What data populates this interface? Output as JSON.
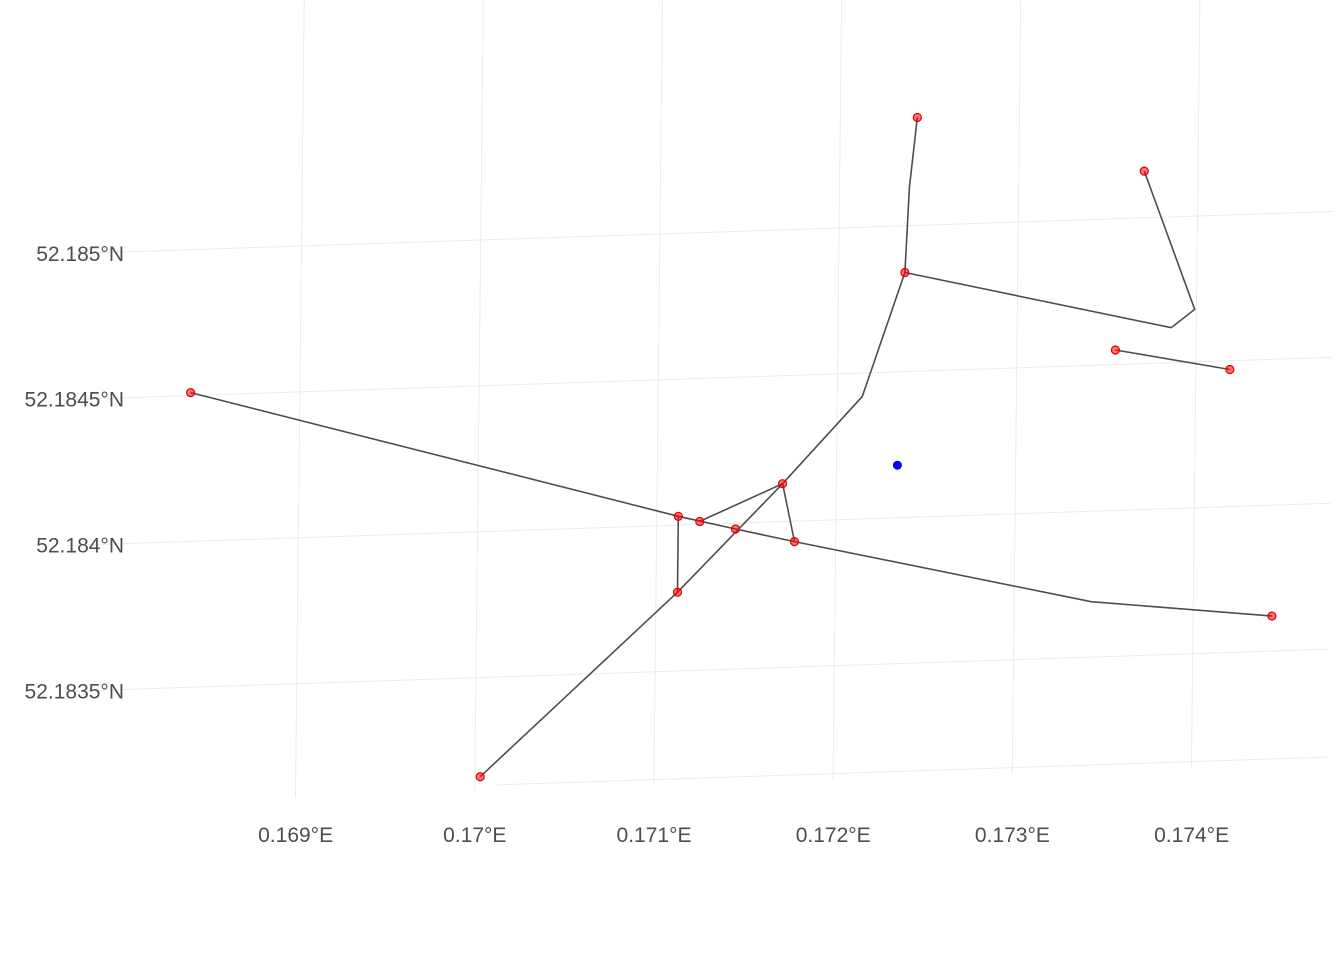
{
  "chart_data": {
    "type": "scatter",
    "title": "",
    "xlabel": "",
    "ylabel": "",
    "grid": true,
    "legend": "none",
    "xlim": [
      0.16835,
      0.17475
    ],
    "ylim": [
      52.18316,
      52.18595
    ],
    "x_ticks": [
      {
        "value": 0.169,
        "label": "0.169°E"
      },
      {
        "value": 0.17,
        "label": "0.17°E"
      },
      {
        "value": 0.171,
        "label": "0.171°E"
      },
      {
        "value": 0.172,
        "label": "0.172°E"
      },
      {
        "value": 0.173,
        "label": "0.173°E"
      },
      {
        "value": 0.174,
        "label": "0.174°E"
      }
    ],
    "y_ticks": [
      {
        "value": 52.1835,
        "label": "52.1835°N"
      },
      {
        "value": 52.184,
        "label": "52.184°N"
      },
      {
        "value": 52.1845,
        "label": "52.1845°N"
      },
      {
        "value": 52.185,
        "label": "52.185°N"
      }
    ],
    "node_color": "#ff0000",
    "edge_color": "#4d4d4d",
    "point_color": "#0000ff",
    "nodes": [
      {
        "x": 0.16839,
        "y": 52.18451
      },
      {
        "x": 0.17003,
        "y": 52.18316
      },
      {
        "x": 0.17112,
        "y": 52.18403
      },
      {
        "x": 0.17112,
        "y": 52.18377
      },
      {
        "x": 0.17124,
        "y": 52.18401
      },
      {
        "x": 0.17144,
        "y": 52.18398
      },
      {
        "x": 0.1717,
        "y": 52.18413
      },
      {
        "x": 0.17177,
        "y": 52.18393
      },
      {
        "x": 0.17237,
        "y": 52.18484
      },
      {
        "x": 0.17243,
        "y": 52.18537
      },
      {
        "x": 0.1737,
        "y": 52.18516
      },
      {
        "x": 0.17355,
        "y": 52.18455
      },
      {
        "x": 0.17419,
        "y": 52.18447
      },
      {
        "x": 0.17444,
        "y": 52.18362
      }
    ],
    "edges": [
      [
        [
          0.16839,
          52.18451
        ],
        [
          0.17112,
          52.18403
        ],
        [
          0.17144,
          52.18398
        ],
        [
          0.17177,
          52.18393
        ],
        [
          0.17343,
          52.18369
        ],
        [
          0.17444,
          52.18362
        ]
      ],
      [
        [
          0.17003,
          52.18316
        ],
        [
          0.17112,
          52.18377
        ],
        [
          0.1717,
          52.18413
        ],
        [
          0.17214,
          52.18442
        ],
        [
          0.17237,
          52.18484
        ],
        [
          0.17239,
          52.18513
        ],
        [
          0.17243,
          52.18537
        ]
      ],
      [
        [
          0.17237,
          52.18484
        ],
        [
          0.17386,
          52.18462
        ],
        [
          0.17399,
          52.18468
        ],
        [
          0.1737,
          52.18516
        ]
      ],
      [
        [
          0.17112,
          52.18403
        ],
        [
          0.17112,
          52.18377
        ]
      ],
      [
        [
          0.17124,
          52.18401
        ],
        [
          0.1717,
          52.18413
        ],
        [
          0.17177,
          52.18393
        ]
      ],
      [
        [
          0.17355,
          52.18455
        ],
        [
          0.17419,
          52.18447
        ]
      ]
    ],
    "points": [
      {
        "x": 0.17234,
        "y": 52.18418
      }
    ]
  }
}
